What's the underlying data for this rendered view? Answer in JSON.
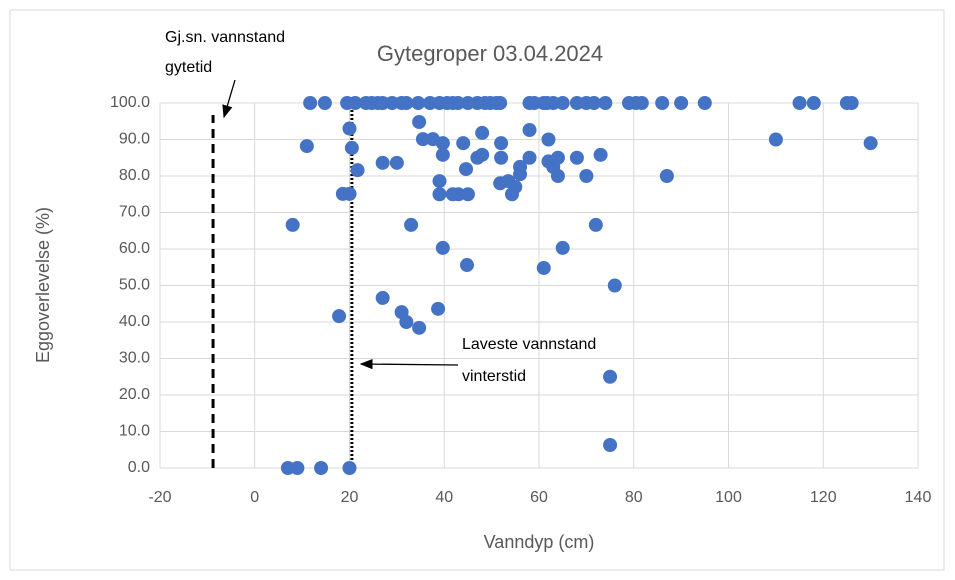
{
  "chart_data": {
    "type": "scatter",
    "title": "Gytegroper 03.04.2024",
    "x_label": "Vanndyp (cm)",
    "y_label": "Eggoverlevelse (%)",
    "color": "#4472c4",
    "grid": true,
    "xlim": [
      -20,
      140
    ],
    "xticks": [
      -20,
      0,
      20,
      40,
      60,
      80,
      100,
      120,
      140
    ],
    "ylim": [
      0,
      100
    ],
    "yticks": [
      {
        "value": 0,
        "label": "0.0"
      },
      {
        "value": 10,
        "label": "10.0"
      },
      {
        "value": 20,
        "label": "20.0"
      },
      {
        "value": 30,
        "label": "30.0"
      },
      {
        "value": 40,
        "label": "40.0"
      },
      {
        "value": 50,
        "label": "50.0"
      },
      {
        "value": 60,
        "label": "60.0"
      },
      {
        "value": 70,
        "label": "70.0"
      },
      {
        "value": 80,
        "label": "80.0"
      },
      {
        "value": 90,
        "label": "90.0"
      },
      {
        "value": 100,
        "label": "100.0"
      }
    ],
    "x": [
      11.7,
      14.8,
      19.5,
      21.2,
      23.5,
      24.7,
      26,
      27,
      29,
      31,
      32,
      34.5,
      37,
      39,
      40.6,
      41.8,
      42.9,
      45,
      47,
      48.6,
      49.7,
      51,
      51.8,
      58,
      59,
      61,
      61.7,
      63,
      65,
      68,
      70,
      71.6,
      74,
      79,
      80.5,
      81.7,
      86,
      90,
      95,
      115,
      118,
      125,
      126,
      11,
      8,
      20,
      20.5,
      21.7,
      18.6,
      20,
      27,
      30,
      34.7,
      35.5,
      37.6,
      39.7,
      39.7,
      44,
      48,
      47,
      48,
      44.6,
      39,
      39,
      41.8,
      43,
      45,
      52,
      52,
      51.8,
      53.5,
      54.3,
      55,
      56,
      56,
      58,
      58,
      62,
      62,
      63,
      64,
      64,
      68,
      70,
      73,
      72,
      87,
      110,
      130,
      33,
      39.7,
      65,
      44.8,
      61,
      76,
      27,
      31,
      32,
      34.7,
      38.7,
      17.8,
      75,
      75,
      7,
      9,
      14,
      20
    ],
    "values": [
      100,
      100,
      100,
      100,
      100,
      100,
      100,
      100,
      100,
      100,
      100,
      100,
      100,
      100,
      100,
      100,
      100,
      100,
      100,
      100,
      100,
      100,
      100,
      100,
      100,
      100,
      100,
      100,
      100,
      100,
      100,
      100,
      100,
      100,
      100,
      100,
      100,
      100,
      100,
      100,
      100,
      100,
      100,
      88.2,
      66.6,
      93,
      87.7,
      81.6,
      75.1,
      75.1,
      83.6,
      83.6,
      94.8,
      90.1,
      90.1,
      89,
      85.8,
      89,
      91.8,
      85,
      85.8,
      81.9,
      78.6,
      75,
      75,
      75,
      75,
      89,
      85,
      78,
      78.6,
      75,
      77,
      80.5,
      82.5,
      92.6,
      85,
      90,
      84,
      82.5,
      85,
      80,
      85,
      80,
      85.8,
      66.6,
      80,
      90,
      89,
      66.6,
      60.3,
      60.3,
      55.6,
      54.8,
      50,
      46.6,
      42.7,
      40,
      38.4,
      43.6,
      41.6,
      25,
      6.3,
      0,
      0,
      0,
      0
    ],
    "reference_lines": [
      {
        "x": -8.8,
        "y": [
          0,
          96.7
        ],
        "style": "dashed",
        "label": [
          "Gj.sn. vannstand",
          "gytetid"
        ]
      },
      {
        "x": 20.5,
        "y": [
          0,
          100
        ],
        "style": "dotted",
        "label": [
          "Laveste vannstand",
          "vinterstid"
        ]
      }
    ]
  }
}
